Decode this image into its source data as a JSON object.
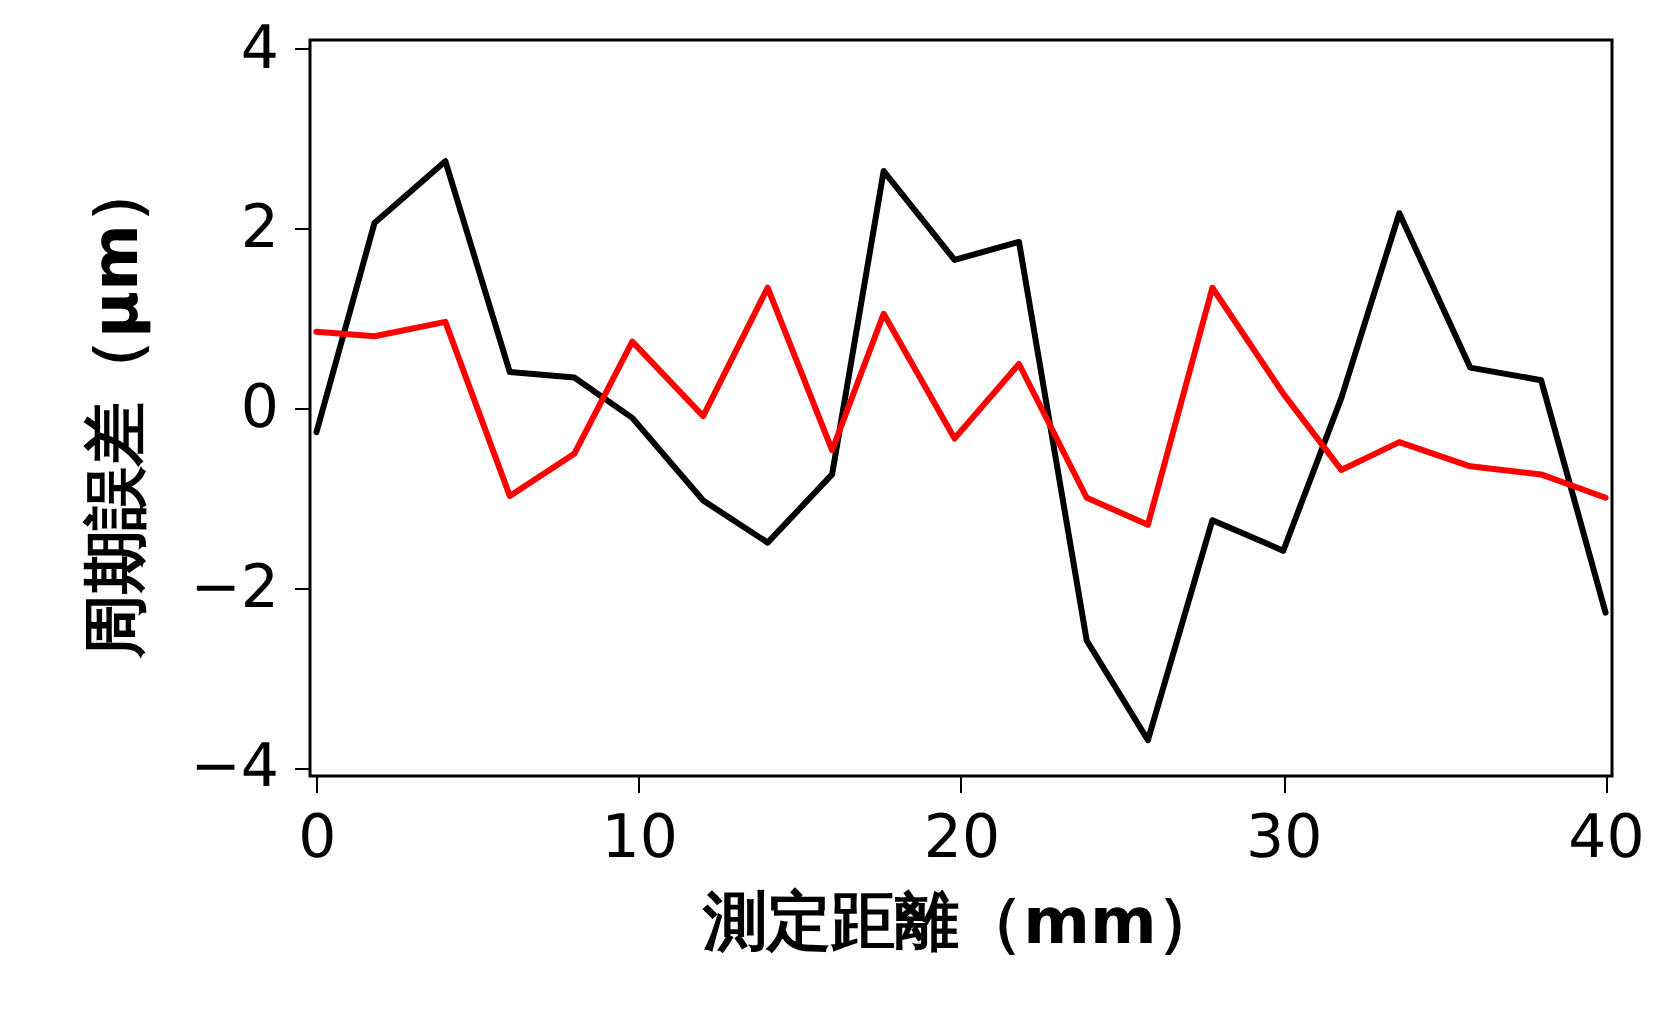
{
  "chart_data": {
    "type": "line",
    "xlabel": "測定距離（mm）",
    "ylabel": "周期誤差（μm）",
    "x": [
      0,
      1.8,
      4,
      6,
      8,
      9.8,
      12,
      14,
      16,
      17.6,
      19.8,
      21.8,
      23.9,
      25.8,
      27.8,
      30,
      31.8,
      33.6,
      35.8,
      38,
      40
    ],
    "series": [
      {
        "color": "#000000",
        "values": [
          -0.27,
          2.06,
          2.75,
          0.4,
          0.34,
          -0.11,
          -1.03,
          -1.5,
          -0.74,
          2.64,
          1.65,
          1.85,
          -2.59,
          -3.7,
          -1.25,
          -1.59,
          0.11,
          2.17,
          0.45,
          0.31,
          -2.28
        ]
      },
      {
        "color": "#ff0000",
        "values": [
          0.85,
          0.8,
          0.96,
          -0.98,
          -0.51,
          0.74,
          -0.09,
          1.34,
          -0.47,
          1.05,
          -0.34,
          0.49,
          -1.0,
          -1.3,
          1.34,
          0.16,
          -0.69,
          -0.38,
          -0.65,
          -0.74,
          -1.0
        ]
      }
    ],
    "xlim": [
      -0.2,
      40.2
    ],
    "ylim": [
      -4.1,
      4.1
    ],
    "xticks": [
      0,
      10,
      20,
      30,
      40
    ],
    "yticks": [
      -4,
      -2,
      0,
      2,
      4
    ],
    "grid": false,
    "legend": false
  }
}
